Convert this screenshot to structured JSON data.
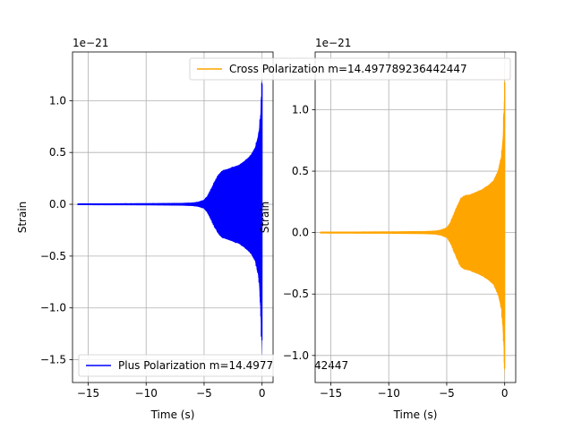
{
  "chart_data": [
    {
      "type": "line",
      "title": "",
      "xlabel": "Time (s)",
      "ylabel": "Strain",
      "offset_text": "1e−21",
      "scale_exponent": -21,
      "xlim": [
        -16.35,
        0.95
      ],
      "ylim": [
        -1.72,
        1.47
      ],
      "xticks": [
        -15,
        -10,
        -5,
        0
      ],
      "xtick_labels": [
        "−15",
        "−10",
        "−5",
        "0"
      ],
      "yticks": [
        -1.5,
        -1.0,
        -0.5,
        0.0,
        0.5,
        1.0
      ],
      "ytick_labels": [
        "−1.5",
        "−1.0",
        "−0.5",
        "0.0",
        "0.5",
        "1.0"
      ],
      "grid": true,
      "legend_position": "lower-left",
      "series": [
        {
          "name": "Plus Polarization m=14.497789236442447",
          "color": "#0000ff",
          "envelope": {
            "t": [
              -15.9,
              -10.0,
              -7.0,
              -6.0,
              -5.5,
              -5.0,
              -4.7,
              -4.4,
              -4.1,
              -3.8,
              -3.5,
              -3.0,
              -2.5,
              -2.0,
              -1.5,
              -1.0,
              -0.6,
              -0.3,
              -0.15,
              -0.05,
              0.0
            ],
            "upper": [
              0.003,
              0.005,
              0.008,
              0.012,
              0.02,
              0.04,
              0.08,
              0.15,
              0.22,
              0.28,
              0.32,
              0.34,
              0.36,
              0.38,
              0.42,
              0.47,
              0.55,
              0.68,
              0.85,
              1.05,
              1.28
            ],
            "lower": [
              -0.003,
              -0.005,
              -0.008,
              -0.012,
              -0.02,
              -0.04,
              -0.08,
              -0.15,
              -0.22,
              -0.28,
              -0.32,
              -0.34,
              -0.36,
              -0.38,
              -0.42,
              -0.47,
              -0.55,
              -0.7,
              -0.95,
              -1.3,
              -1.5
            ]
          }
        }
      ]
    },
    {
      "type": "line",
      "title": "",
      "xlabel": "Time (s)",
      "ylabel": "Strain",
      "offset_text": "1e−21",
      "scale_exponent": -21,
      "xlim": [
        -16.35,
        0.95
      ],
      "ylim": [
        -1.22,
        1.47
      ],
      "xticks": [
        -15,
        -10,
        -5,
        0
      ],
      "xtick_labels": [
        "−15",
        "−10",
        "−5",
        "0"
      ],
      "yticks": [
        -1.0,
        -0.5,
        0.0,
        0.5,
        1.0
      ],
      "ytick_labels": [
        "−1.0",
        "−0.5",
        "0.0",
        "0.5",
        "1.0"
      ],
      "grid": true,
      "legend_position": "upper-right",
      "series": [
        {
          "name": "Cross Polarization m=14.497789236442447",
          "color": "#ffa500",
          "envelope": {
            "t": [
              -15.9,
              -10.0,
              -7.0,
              -6.0,
              -5.5,
              -5.0,
              -4.7,
              -4.4,
              -4.1,
              -3.8,
              -3.5,
              -3.0,
              -2.5,
              -2.0,
              -1.5,
              -1.0,
              -0.6,
              -0.3,
              -0.15,
              -0.05,
              0.0
            ],
            "upper": [
              0.003,
              0.005,
              0.008,
              0.012,
              0.02,
              0.04,
              0.08,
              0.15,
              0.22,
              0.28,
              0.3,
              0.31,
              0.33,
              0.35,
              0.38,
              0.42,
              0.5,
              0.62,
              0.8,
              1.05,
              1.4
            ],
            "lower": [
              -0.003,
              -0.005,
              -0.008,
              -0.012,
              -0.02,
              -0.04,
              -0.08,
              -0.15,
              -0.22,
              -0.28,
              -0.3,
              -0.31,
              -0.33,
              -0.35,
              -0.38,
              -0.42,
              -0.5,
              -0.62,
              -0.8,
              -1.0,
              -1.2
            ]
          }
        }
      ]
    }
  ]
}
